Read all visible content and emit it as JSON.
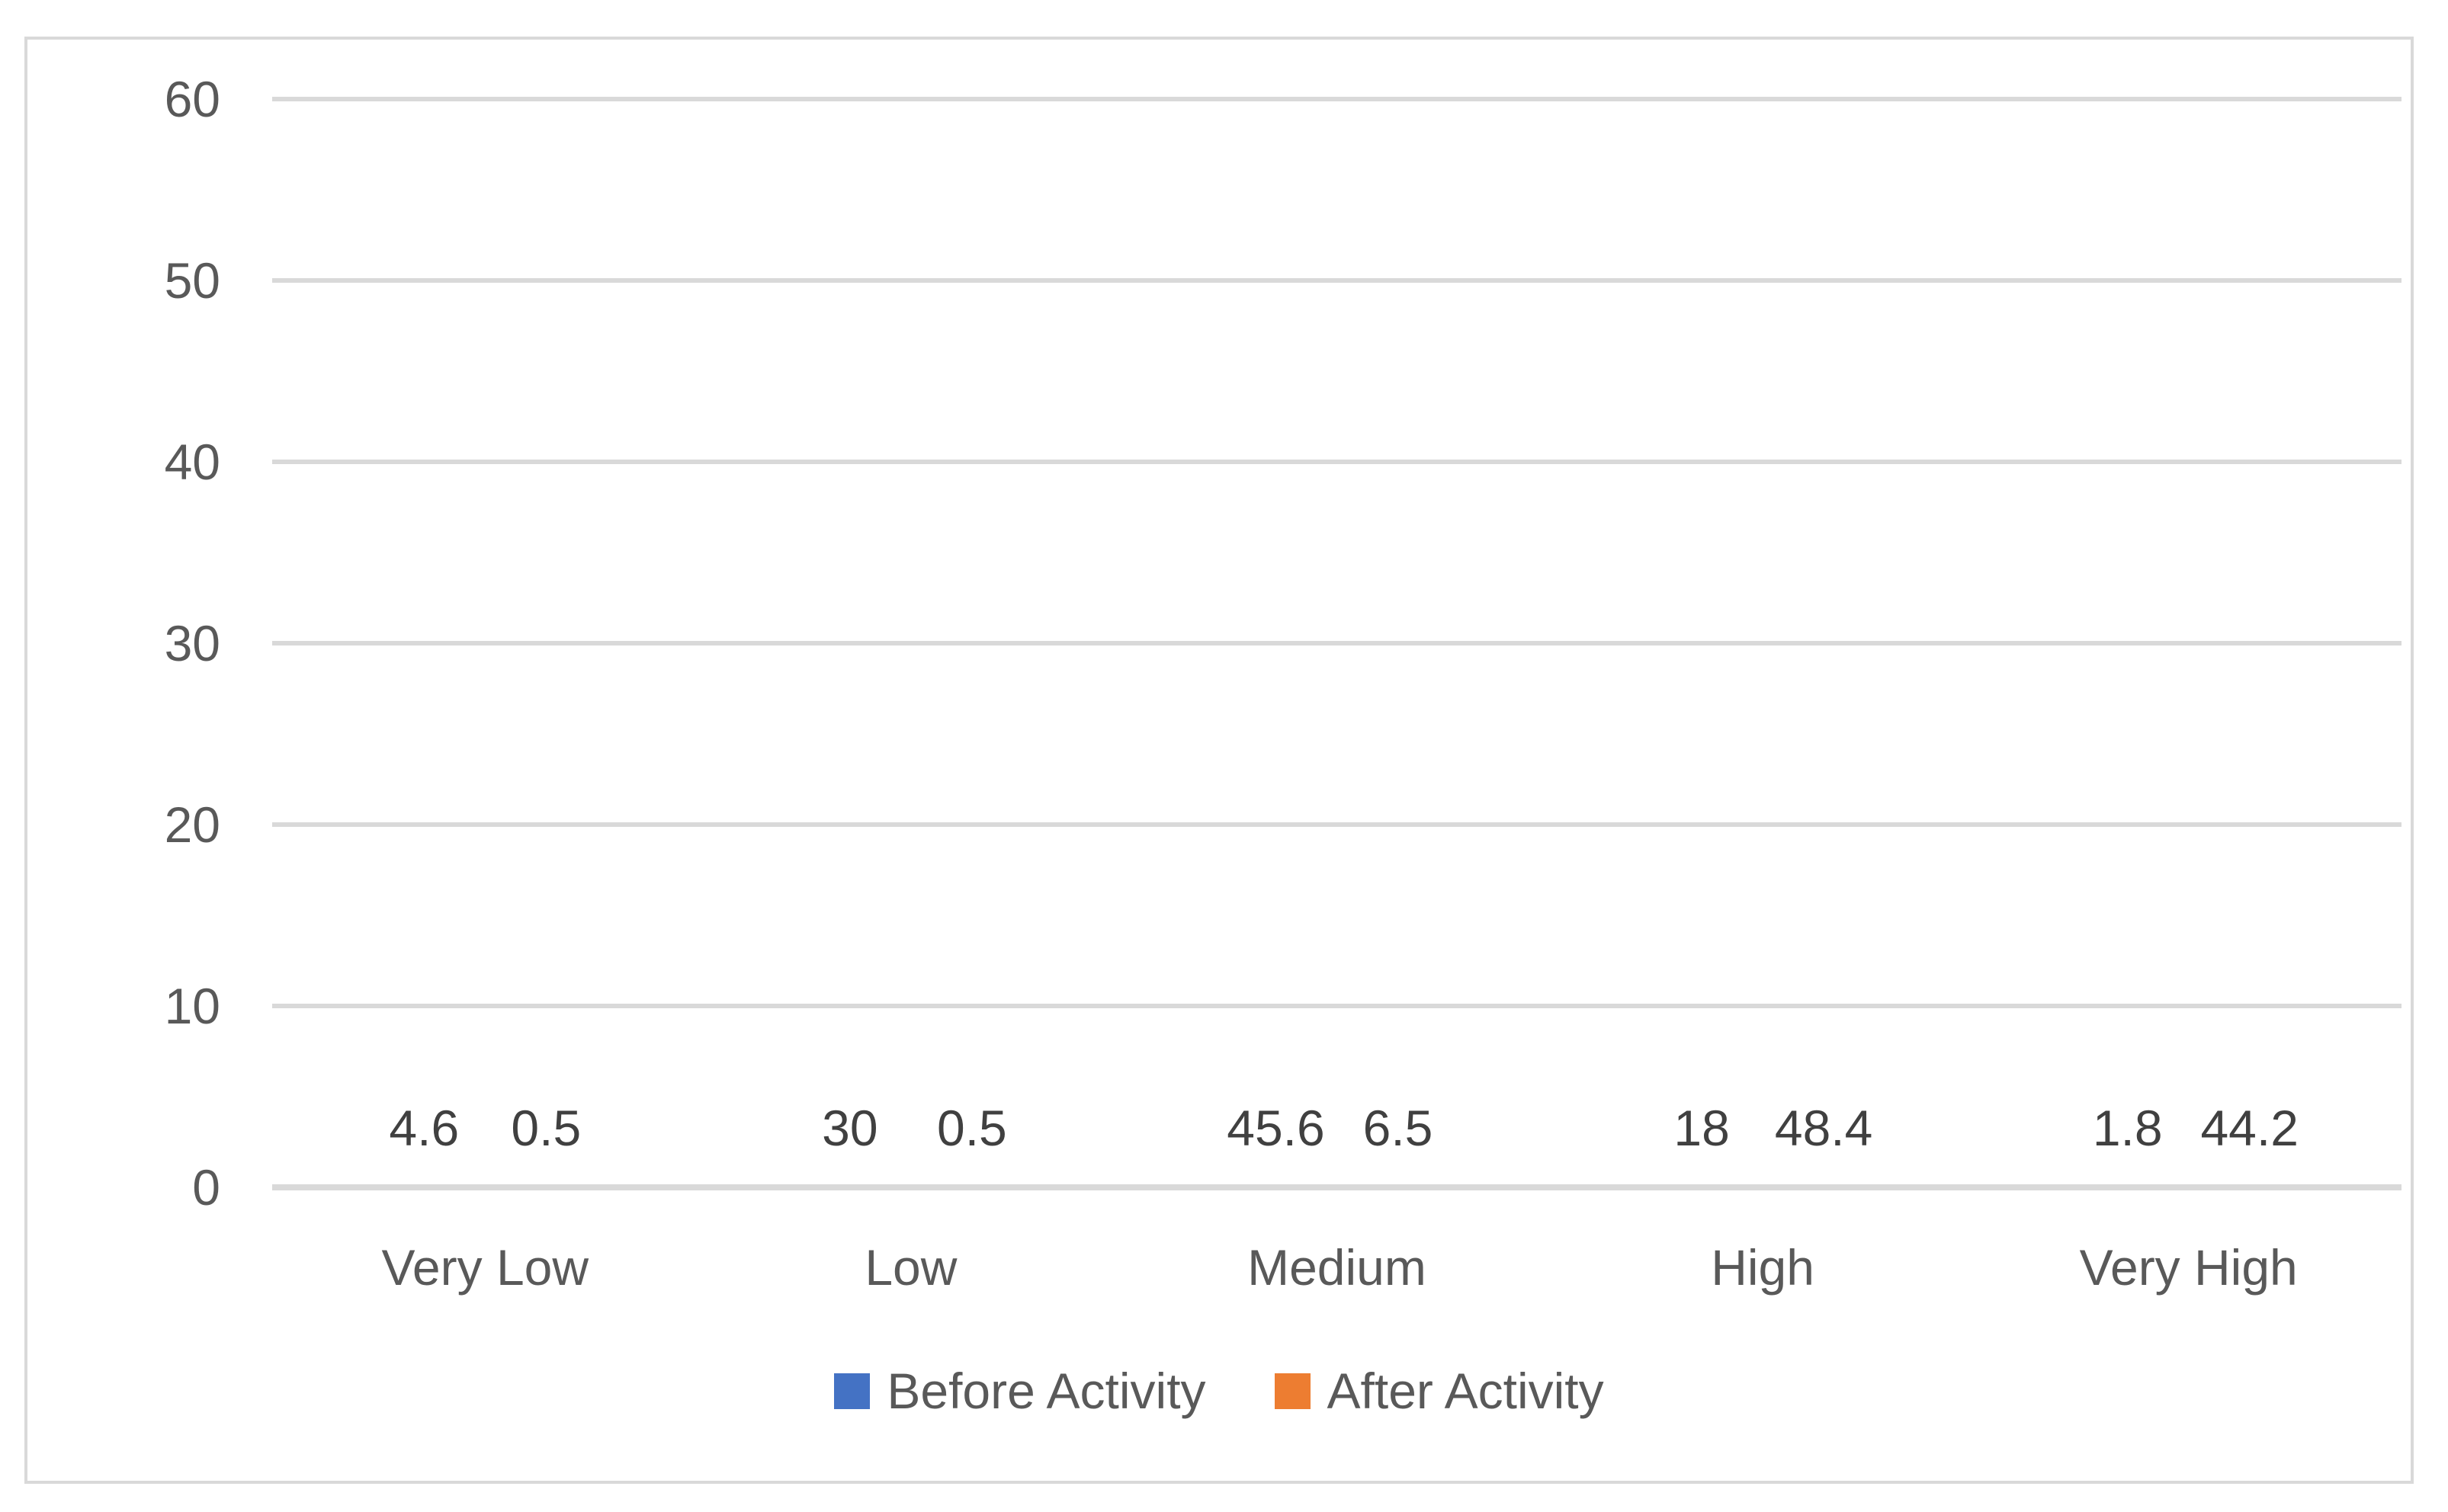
{
  "chart_data": {
    "type": "bar",
    "title": "",
    "categories": [
      "Very Low",
      "Low",
      "Medium",
      "High",
      "Very High"
    ],
    "series": [
      {
        "name": "Before Activity",
        "color": "#4472C4",
        "values": [
          4.6,
          30,
          45.6,
          18,
          1.8
        ],
        "data_labels": [
          "4.6",
          "30",
          "45.6",
          "18",
          "1.8"
        ]
      },
      {
        "name": "After Activity",
        "color": "#ED7D31",
        "values": [
          0.5,
          0.5,
          6.5,
          48.4,
          44.2
        ],
        "data_labels": [
          "0.5",
          "0.5",
          "6.5",
          "48.4",
          "44.2"
        ]
      }
    ],
    "y_axis": {
      "min": 0,
      "max": 60,
      "ticks": [
        0,
        10,
        20,
        30,
        40,
        50,
        60
      ]
    },
    "grid": true,
    "legend_position": "bottom",
    "style": {
      "gridline_color": "#D9D9D9",
      "axis_line_color": "#D9D9D9",
      "border_color": "#D9D9D9",
      "tick_text_color": "#595959",
      "category_text_color": "#595959",
      "data_label_color": "#404040",
      "legend_text_color": "#595959",
      "background": "#FFFFFF"
    }
  }
}
